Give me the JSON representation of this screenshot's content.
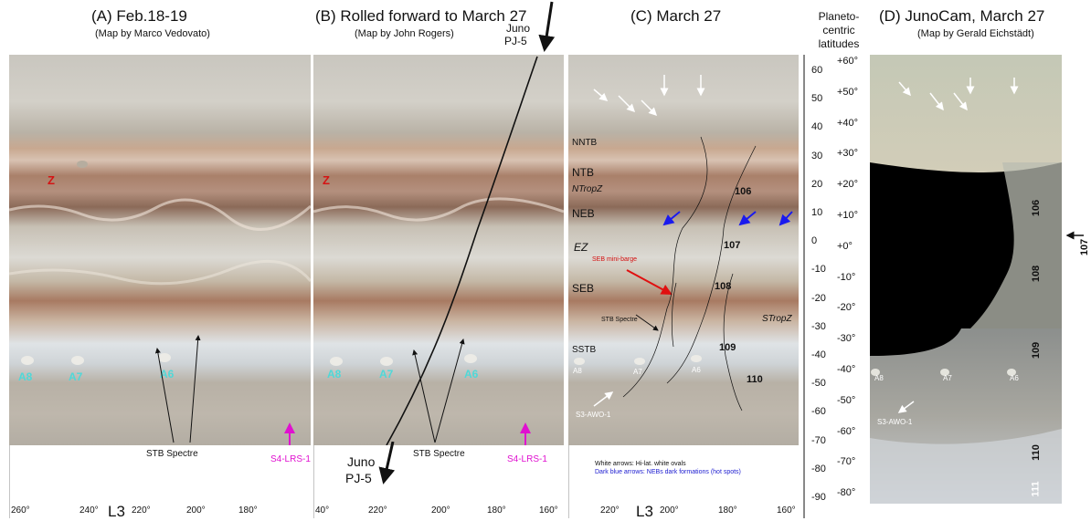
{
  "panel_a": {
    "title": "(A)  Feb.18-19",
    "subtitle": "(Map by Marco Vedovato)",
    "z_label": "Z",
    "spots": [
      "A8",
      "A7",
      "A6"
    ],
    "stb_spectre": "STB Spectre",
    "lrs": "S4-LRS-1",
    "axis_label": "L3",
    "ticks": [
      "260°",
      "240°",
      "220°",
      "200°",
      "180°"
    ]
  },
  "panel_b": {
    "title": "(B)  Rolled forward to March 27",
    "subtitle": "(Map by John Rogers)",
    "z_label": "Z",
    "spots": [
      "A8",
      "A7",
      "A6"
    ],
    "juno_top": [
      "Juno",
      "PJ-5"
    ],
    "juno_bottom": [
      "Juno",
      "PJ-5"
    ],
    "stb_spectre": "STB Spectre",
    "lrs": "S4-LRS-1",
    "ticks": [
      "40°",
      "220°",
      "200°",
      "180°",
      "160°"
    ]
  },
  "panel_c": {
    "title": "(C)  March 27",
    "belts": [
      "NNTB",
      "NTB",
      "NTropZ",
      "NEB",
      "EZ",
      "SEB",
      "SSTB"
    ],
    "strop": "STropZ",
    "numbers": [
      "106",
      "107",
      "108",
      "109",
      "110"
    ],
    "seb_barge": "SEB mini-barge",
    "stb_spectre": "STB Spectre",
    "spots": [
      "A8",
      "A7",
      "A6"
    ],
    "awo": "S3-AWO-1",
    "legend_white": "White arrows:  Hi-lat. white ovals",
    "legend_blue": "Dark blue arrows:  NEBs dark formations (hot spots)",
    "axis_label": "L3",
    "ticks": [
      "220°",
      "200°",
      "180°",
      "160°"
    ]
  },
  "latitude_axis": {
    "title": [
      "Planeto-",
      "centric",
      "latitudes"
    ],
    "values": [
      "60",
      "50",
      "40",
      "30",
      "20",
      "10",
      "0",
      "-10",
      "-20",
      "-30",
      "-40",
      "-50",
      "-60",
      "-70",
      "-80",
      "-90"
    ]
  },
  "panel_d": {
    "title": "(D)  JunoCam, March 27",
    "subtitle": "(Map by Gerald Eichstädt)",
    "latitudes": [
      "+60°",
      "+50°",
      "+40°",
      "+30°",
      "+20°",
      "+10°",
      "+0°",
      "-10°",
      "-20°",
      "-30°",
      "-40°",
      "-50°",
      "-60°",
      "-70°",
      "-80°"
    ],
    "numbers": [
      "106",
      "107",
      "108",
      "109",
      "110",
      "111"
    ],
    "spots": [
      "A8",
      "A7",
      "A6"
    ],
    "awo": "S3-AWO-1"
  },
  "colors": {
    "z_red": "#d41414",
    "cyan": "#4fd8d8",
    "magenta": "#e010d0",
    "blue_arrow": "#1a1aee",
    "legend_blue": "#1a1ad0"
  }
}
